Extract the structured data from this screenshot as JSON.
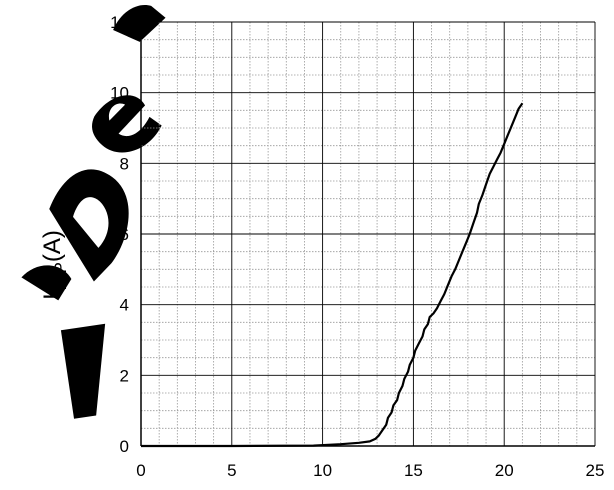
{
  "chart_data": {
    "type": "line",
    "title": "",
    "xlabel": "",
    "ylabel": {
      "main": "I",
      "subscript": "TLP",
      "suffix": "(A)"
    },
    "xlim": [
      0,
      25
    ],
    "ylim": [
      0,
      12
    ],
    "x_ticks": [
      0,
      5,
      10,
      15,
      20,
      25
    ],
    "y_ticks": [
      0,
      2,
      4,
      6,
      8,
      10,
      12
    ],
    "x_minor_step": 1,
    "y_minor_step": 0.5,
    "grid": true,
    "legend": "none",
    "series": [
      {
        "color": "#000000",
        "points": [
          [
            0,
            0
          ],
          [
            5,
            0
          ],
          [
            9.5,
            0.01
          ],
          [
            11,
            0.05
          ],
          [
            12,
            0.09
          ],
          [
            12.6,
            0.13
          ],
          [
            12.9,
            0.2
          ],
          [
            13.1,
            0.3
          ],
          [
            13.3,
            0.45
          ],
          [
            13.5,
            0.6
          ],
          [
            13.6,
            0.8
          ],
          [
            13.8,
            0.95
          ],
          [
            13.9,
            1.15
          ],
          [
            14.1,
            1.3
          ],
          [
            14.2,
            1.5
          ],
          [
            14.4,
            1.7
          ],
          [
            14.5,
            1.9
          ],
          [
            14.7,
            2.1
          ],
          [
            14.8,
            2.3
          ],
          [
            15.0,
            2.5
          ],
          [
            15.1,
            2.7
          ],
          [
            15.3,
            2.9
          ],
          [
            15.5,
            3.1
          ],
          [
            15.6,
            3.3
          ],
          [
            15.8,
            3.45
          ],
          [
            15.9,
            3.65
          ],
          [
            16.1,
            3.75
          ],
          [
            16.3,
            3.9
          ],
          [
            16.5,
            4.1
          ],
          [
            16.7,
            4.3
          ],
          [
            16.9,
            4.55
          ],
          [
            17.1,
            4.8
          ],
          [
            17.3,
            5.0
          ],
          [
            17.5,
            5.25
          ],
          [
            17.7,
            5.5
          ],
          [
            17.9,
            5.75
          ],
          [
            18.1,
            6.0
          ],
          [
            18.3,
            6.3
          ],
          [
            18.5,
            6.6
          ],
          [
            18.6,
            6.85
          ],
          [
            18.8,
            7.1
          ],
          [
            19.0,
            7.4
          ],
          [
            19.2,
            7.7
          ],
          [
            19.4,
            7.9
          ],
          [
            19.6,
            8.1
          ],
          [
            19.8,
            8.3
          ],
          [
            20.0,
            8.55
          ],
          [
            20.2,
            8.8
          ],
          [
            20.4,
            9.05
          ],
          [
            20.6,
            9.3
          ],
          [
            20.8,
            9.55
          ],
          [
            21.0,
            9.7
          ]
        ]
      }
    ]
  },
  "colors": {
    "grid_major": "#000000",
    "grid_minor": "#999999",
    "axis": "#000000",
    "line": "#000000",
    "watermark": "#000000"
  }
}
